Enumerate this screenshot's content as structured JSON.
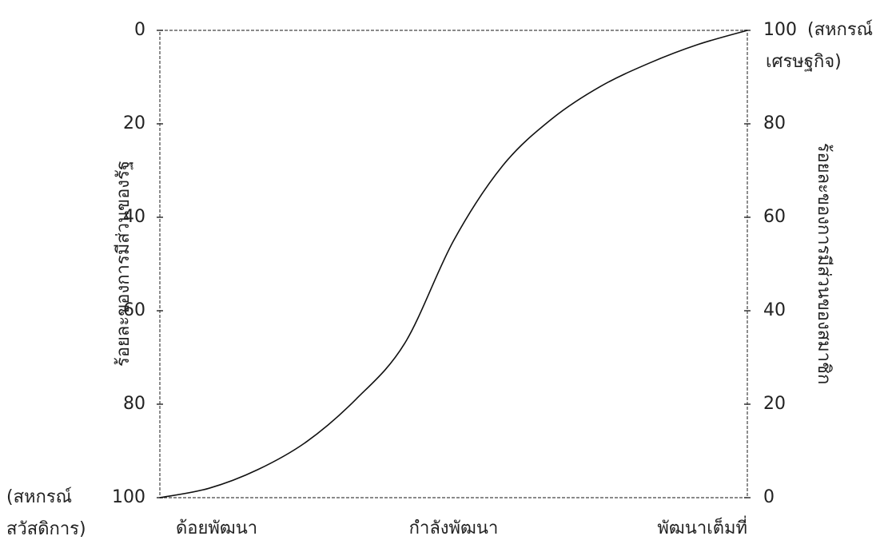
{
  "chart_data": {
    "type": "line",
    "categories": [
      "ด้อยพัฒนา",
      null,
      null,
      null,
      null,
      null,
      "กำลังพัฒนา",
      null,
      null,
      null,
      null,
      null,
      "พัฒนาเต็มที่"
    ],
    "series": [
      {
        "name": null,
        "color": "#111111",
        "axis": "y2",
        "values": [
          0,
          2,
          6,
          12,
          21,
          33,
          55,
          71,
          81,
          88,
          93,
          97,
          100
        ]
      }
    ],
    "ylabel": "ร้อยละของการมีส่วนของรัฐ",
    "y2label": "ร้อยละของการมีส่วนของสมาชิก",
    "ylim": [
      100,
      0
    ],
    "yticks": [
      0,
      20,
      40,
      60,
      80,
      100
    ],
    "y2lim": [
      0,
      100
    ],
    "y2ticks": [
      0,
      20,
      40,
      60,
      80,
      100
    ],
    "left_note": [
      "(สหกรณ์",
      "สวัสดิการ)"
    ],
    "right_note": [
      "(สหกรณ์",
      "เศรษฐกิจ)"
    ],
    "grid": false
  }
}
